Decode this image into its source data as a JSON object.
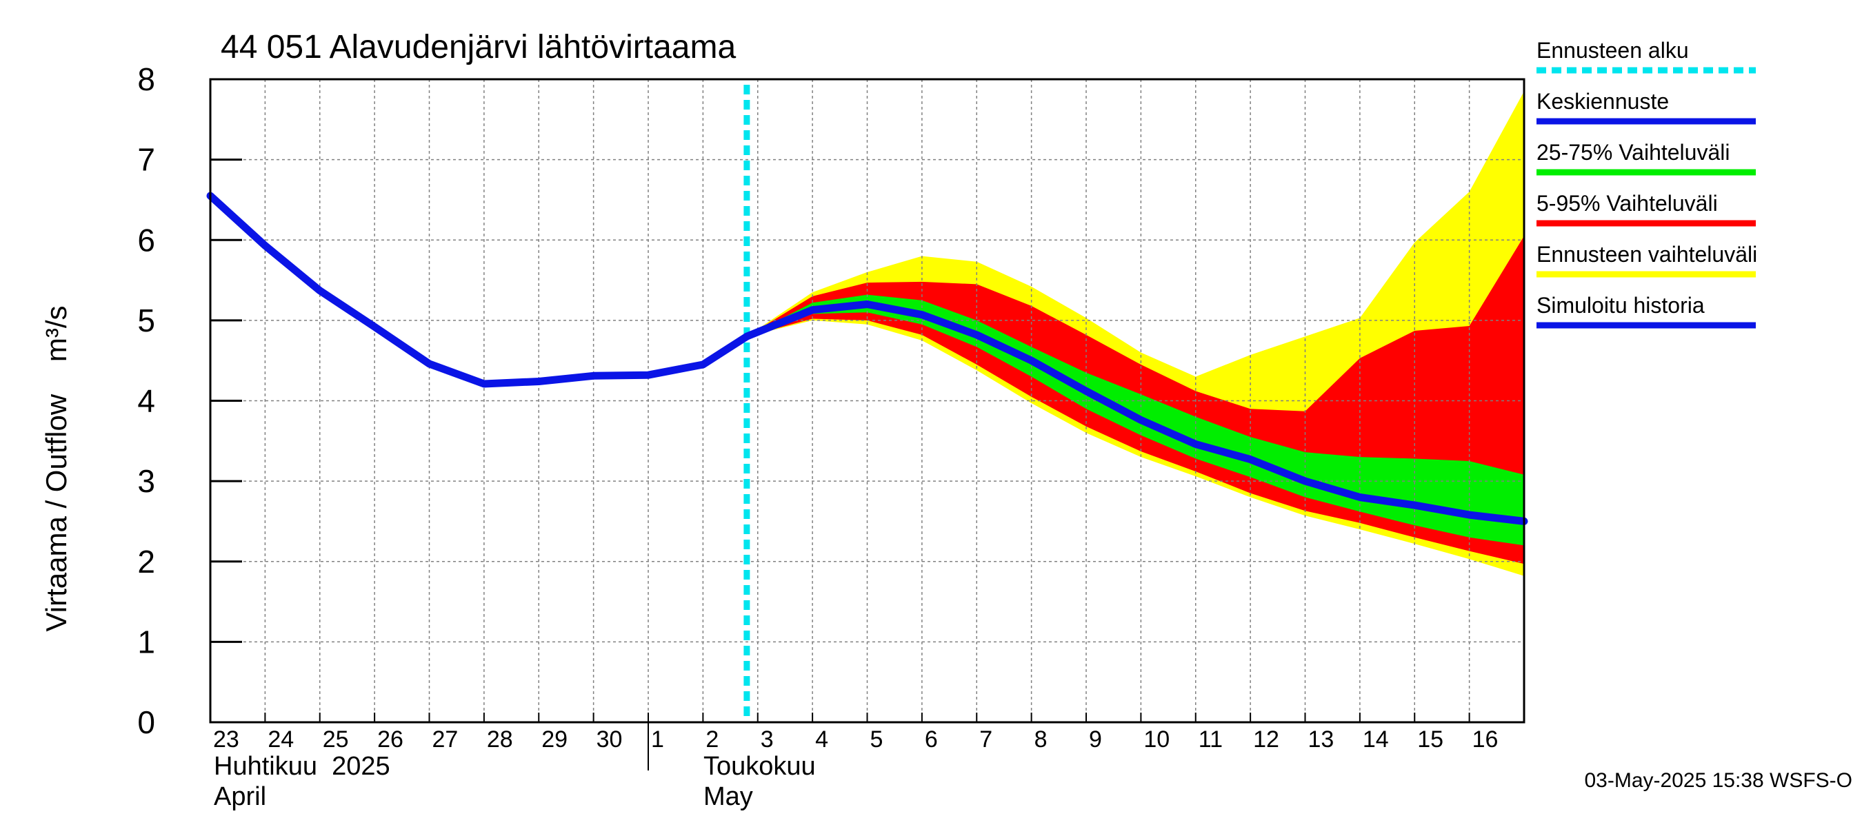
{
  "chart_data": {
    "type": "area",
    "title": "44 051 Alavudenjärvi lähtövirtaama",
    "ylabel": "Virtaama / Outflow    m³/s",
    "ylim": [
      0,
      8
    ],
    "yticks": [
      "0",
      "1",
      "2",
      "3",
      "4",
      "5",
      "6",
      "7",
      "8"
    ],
    "x_range": [
      23,
      47
    ],
    "x_ticks": [
      {
        "x": 23,
        "label": "23"
      },
      {
        "x": 24,
        "label": "24"
      },
      {
        "x": 25,
        "label": "25"
      },
      {
        "x": 26,
        "label": "26"
      },
      {
        "x": 27,
        "label": "27"
      },
      {
        "x": 28,
        "label": "28"
      },
      {
        "x": 29,
        "label": "29"
      },
      {
        "x": 30,
        "label": "30"
      },
      {
        "x": 31,
        "label": "1"
      },
      {
        "x": 32,
        "label": "2"
      },
      {
        "x": 33,
        "label": "3"
      },
      {
        "x": 34,
        "label": "4"
      },
      {
        "x": 35,
        "label": "5"
      },
      {
        "x": 36,
        "label": "6"
      },
      {
        "x": 37,
        "label": "7"
      },
      {
        "x": 38,
        "label": "8"
      },
      {
        "x": 39,
        "label": "9"
      },
      {
        "x": 40,
        "label": "10"
      },
      {
        "x": 41,
        "label": "11"
      },
      {
        "x": 42,
        "label": "12"
      },
      {
        "x": 43,
        "label": "13"
      },
      {
        "x": 44,
        "label": "14"
      },
      {
        "x": 45,
        "label": "15"
      },
      {
        "x": 46,
        "label": "16"
      }
    ],
    "month_labels": [
      {
        "x": 23,
        "line1": "Huhtikuu  2025",
        "line2": "April"
      },
      {
        "x": 32,
        "line1": "Toukokuu",
        "line2": "May"
      }
    ],
    "month_divider_x": 31,
    "forecast_start_x": 32.8,
    "history": {
      "name": "Simuloitu historia",
      "x": [
        23,
        24,
        25,
        26,
        27,
        28,
        29,
        30,
        31,
        32,
        32.8
      ],
      "y": [
        6.55,
        5.93,
        5.37,
        4.92,
        4.46,
        4.21,
        4.24,
        4.31,
        4.32,
        4.45,
        4.8
      ]
    },
    "forecast_x": [
      32.8,
      34,
      35,
      36,
      37,
      38,
      39,
      40,
      41,
      42,
      43,
      44,
      45,
      46,
      47
    ],
    "mean": {
      "name": "Keskiennuste",
      "y": [
        4.8,
        5.13,
        5.2,
        5.07,
        4.82,
        4.5,
        4.12,
        3.76,
        3.46,
        3.27,
        3.0,
        2.8,
        2.7,
        2.58,
        2.5
      ]
    },
    "band_25_75": {
      "name": "25-75% Vaihteluväli",
      "low": [
        4.8,
        5.08,
        5.1,
        4.95,
        4.67,
        4.3,
        3.9,
        3.57,
        3.28,
        3.05,
        2.8,
        2.62,
        2.45,
        2.3,
        2.2
      ],
      "high": [
        4.8,
        5.22,
        5.32,
        5.25,
        5.0,
        4.67,
        4.35,
        4.08,
        3.8,
        3.55,
        3.36,
        3.3,
        3.28,
        3.25,
        3.08
      ]
    },
    "band_5_95": {
      "name": "5-95% Vaihteluväli",
      "low": [
        4.8,
        5.02,
        5.0,
        4.82,
        4.45,
        4.05,
        3.68,
        3.37,
        3.12,
        2.85,
        2.63,
        2.48,
        2.3,
        2.13,
        1.97
      ],
      "high": [
        4.8,
        5.3,
        5.47,
        5.48,
        5.45,
        5.18,
        4.82,
        4.45,
        4.12,
        3.9,
        3.87,
        4.53,
        4.87,
        4.93,
        6.05
      ]
    },
    "band_total": {
      "name": "Ennusteen vaihteluväli",
      "low": [
        4.8,
        5.0,
        4.95,
        4.75,
        4.38,
        3.97,
        3.6,
        3.3,
        3.06,
        2.8,
        2.57,
        2.4,
        2.22,
        2.03,
        1.82
      ],
      "high": [
        4.8,
        5.35,
        5.6,
        5.8,
        5.73,
        5.42,
        5.03,
        4.6,
        4.3,
        4.57,
        4.8,
        5.03,
        5.97,
        6.6,
        7.85
      ]
    },
    "legend": [
      {
        "label": "Ennusteen alku",
        "color": "#00e5ee",
        "style": "dashed"
      },
      {
        "label": "Keskiennuste",
        "color": "#0a14e6",
        "style": "solid"
      },
      {
        "label": "25-75% Vaihteluväli",
        "color": "#00ee00",
        "style": "solid"
      },
      {
        "label": "5-95% Vaihteluväli",
        "color": "#ff0000",
        "style": "solid"
      },
      {
        "label": "Ennusteen vaihteluväli",
        "color": "#ffff00",
        "style": "solid"
      },
      {
        "label": "Simuloitu historia",
        "color": "#0a14e6",
        "style": "solid"
      }
    ],
    "legend_placement": "right",
    "grid": true,
    "colors": {
      "history": "#0a14e6",
      "mean": "#0a14e6",
      "band_25_75": "#00ee00",
      "band_5_95": "#ff0000",
      "band_total": "#ffff00",
      "forecast_start": "#00e5ee",
      "grid": "#808080",
      "axis": "#000000"
    },
    "timestamp": "03-May-2025 15:38 WSFS-O"
  }
}
